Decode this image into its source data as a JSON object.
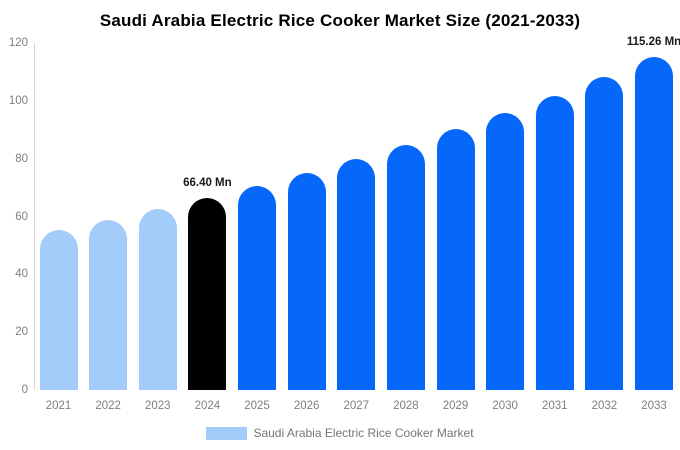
{
  "title": "Saudi Arabia Electric Rice Cooker Market Size (2021-2033)",
  "chart_data": {
    "type": "bar",
    "title": "Saudi Arabia Electric Rice Cooker Market Size (2021-2033)",
    "categories": [
      "2021",
      "2022",
      "2023",
      "2024",
      "2025",
      "2026",
      "2027",
      "2028",
      "2029",
      "2030",
      "2031",
      "2032",
      "2033"
    ],
    "values": [
      55.3,
      58.8,
      62.5,
      66.4,
      70.6,
      75.0,
      79.8,
      84.8,
      90.1,
      95.8,
      101.8,
      108.3,
      115.26
    ],
    "unit": "Mn",
    "xlabel": "",
    "ylabel": "",
    "ylim": [
      0,
      120
    ],
    "yticks": [
      0,
      20,
      40,
      60,
      80,
      100,
      120
    ],
    "grid": false,
    "bar_colors": [
      "#A3CCFA",
      "#A3CCFA",
      "#A3CCFA",
      "#000000",
      "#0668FA",
      "#0668FA",
      "#0668FA",
      "#0668FA",
      "#0668FA",
      "#0668FA",
      "#0668FA",
      "#0668FA",
      "#0668FA"
    ],
    "series_colors": {
      "historical": "#A3CCFA",
      "base_year": "#000000",
      "forecast": "#0668FA"
    },
    "annotations": [
      {
        "index": 3,
        "text": "66.40 Mn"
      },
      {
        "index": 12,
        "text": "115.26 Mn"
      }
    ],
    "legend": {
      "position": "bottom",
      "label": "Saudi Arabia Electric Rice Cooker Market",
      "swatch_color": "#A3CCFA"
    },
    "axis_text_color": "#808080",
    "annotation_text_color": "#1a1a1a"
  }
}
